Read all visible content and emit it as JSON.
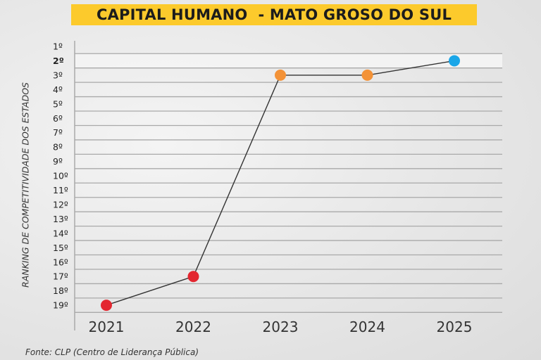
{
  "title": "CAPITAL HUMANO  - MATO GROSO DO SUL",
  "source": "Fonte: CLP (Centro de Liderança Pública)",
  "colors": {
    "title_bg": "#fcca2c",
    "red": "#e3262f",
    "orange": "#f39237",
    "blue": "#1aa6e8",
    "line": "#333333",
    "grid": "#a9a9a9",
    "highlight_row": "#f3f3f3"
  },
  "chart_data": {
    "type": "line",
    "title": "CAPITAL HUMANO  - MATO GROSO DO SUL",
    "ylabel": "RANKING DE COMPETITIVIDADE DOS ESTADOS",
    "xlabel": "",
    "y_inverted": true,
    "ylim": [
      1,
      19
    ],
    "categories": [
      "2021",
      "2022",
      "2023",
      "2024",
      "2025"
    ],
    "y_tick_labels": [
      "1º",
      "2º",
      "3º",
      "4º",
      "5º",
      "6º",
      "7º",
      "8º",
      "9º",
      "10º",
      "11º",
      "12º",
      "13º",
      "14º",
      "15º",
      "16º",
      "17º",
      "18º",
      "19º"
    ],
    "highlighted_rank": 2,
    "grid": true,
    "points": [
      {
        "x": "2021",
        "y": 19,
        "color": "red"
      },
      {
        "x": "2022",
        "y": 17,
        "color": "red"
      },
      {
        "x": "2023",
        "y": 3,
        "color": "orange"
      },
      {
        "x": "2024",
        "y": 3,
        "color": "orange"
      },
      {
        "x": "2025",
        "y": 2,
        "color": "blue"
      }
    ]
  }
}
